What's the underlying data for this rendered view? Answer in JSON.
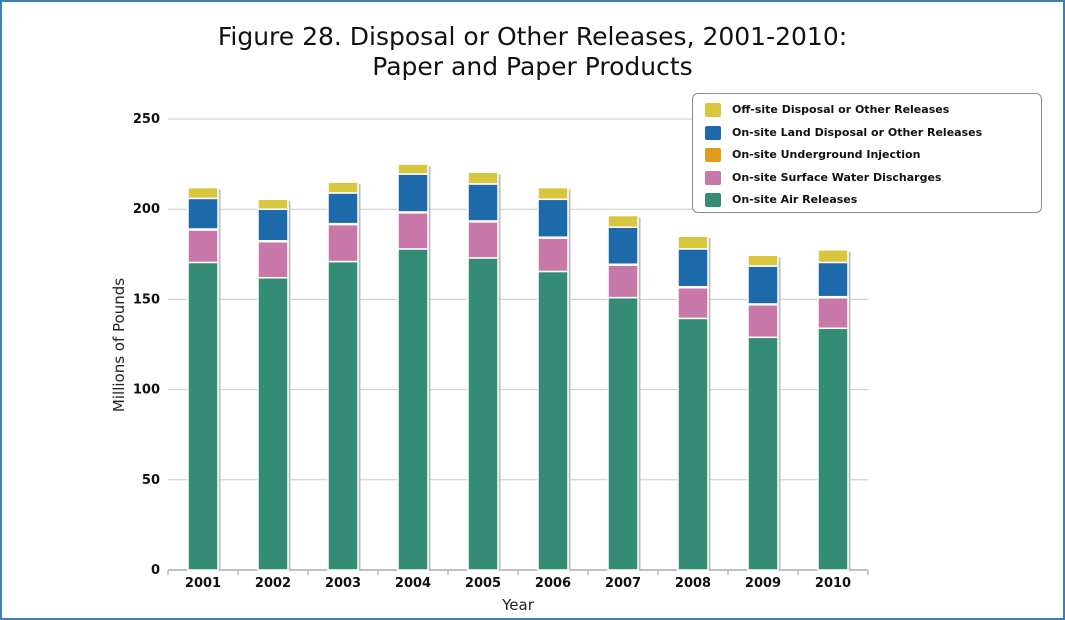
{
  "chart_data": {
    "type": "bar",
    "stacked": true,
    "title": "Figure 28. Disposal or Other Releases, 2001-2010:",
    "subtitle": "Paper and Paper Products",
    "xlabel": "Year",
    "ylabel": "Millions of Pounds",
    "ylim": [
      0,
      250
    ],
    "yticks": [
      0,
      50,
      100,
      150,
      200,
      250
    ],
    "grid": true,
    "legend_position": "top-right",
    "categories": [
      "2001",
      "2002",
      "2003",
      "2004",
      "2005",
      "2006",
      "2007",
      "2008",
      "2009",
      "2010"
    ],
    "series": [
      {
        "name": "On-site Air Releases",
        "color": "#358c74",
        "values": [
          170.5,
          162,
          171,
          178,
          173,
          165.5,
          151,
          139.5,
          129,
          134
        ]
      },
      {
        "name": "On-site Surface Water Discharges",
        "color": "#c877a9",
        "values": [
          18,
          20,
          20.5,
          20,
          20,
          18.5,
          18,
          17,
          18,
          17
        ]
      },
      {
        "name": "On-site Underground  Injection",
        "color": "#e09a1e",
        "values": [
          0.5,
          0.5,
          0.5,
          0.5,
          0.5,
          0.5,
          0.5,
          0.5,
          0.5,
          0.5
        ]
      },
      {
        "name": "On-site Land Disposal or Other Releases",
        "color": "#1c6aa9",
        "values": [
          17,
          17.5,
          17,
          21,
          20.5,
          21,
          20.5,
          21,
          21,
          19
        ]
      },
      {
        "name": "Off-site Disposal or Other Releases",
        "color": "#d9c63f",
        "values": [
          6,
          5.5,
          6,
          5.5,
          6.5,
          6.5,
          6.5,
          7,
          6,
          7
        ]
      }
    ]
  },
  "legend_order": [
    4,
    3,
    2,
    1,
    0
  ]
}
